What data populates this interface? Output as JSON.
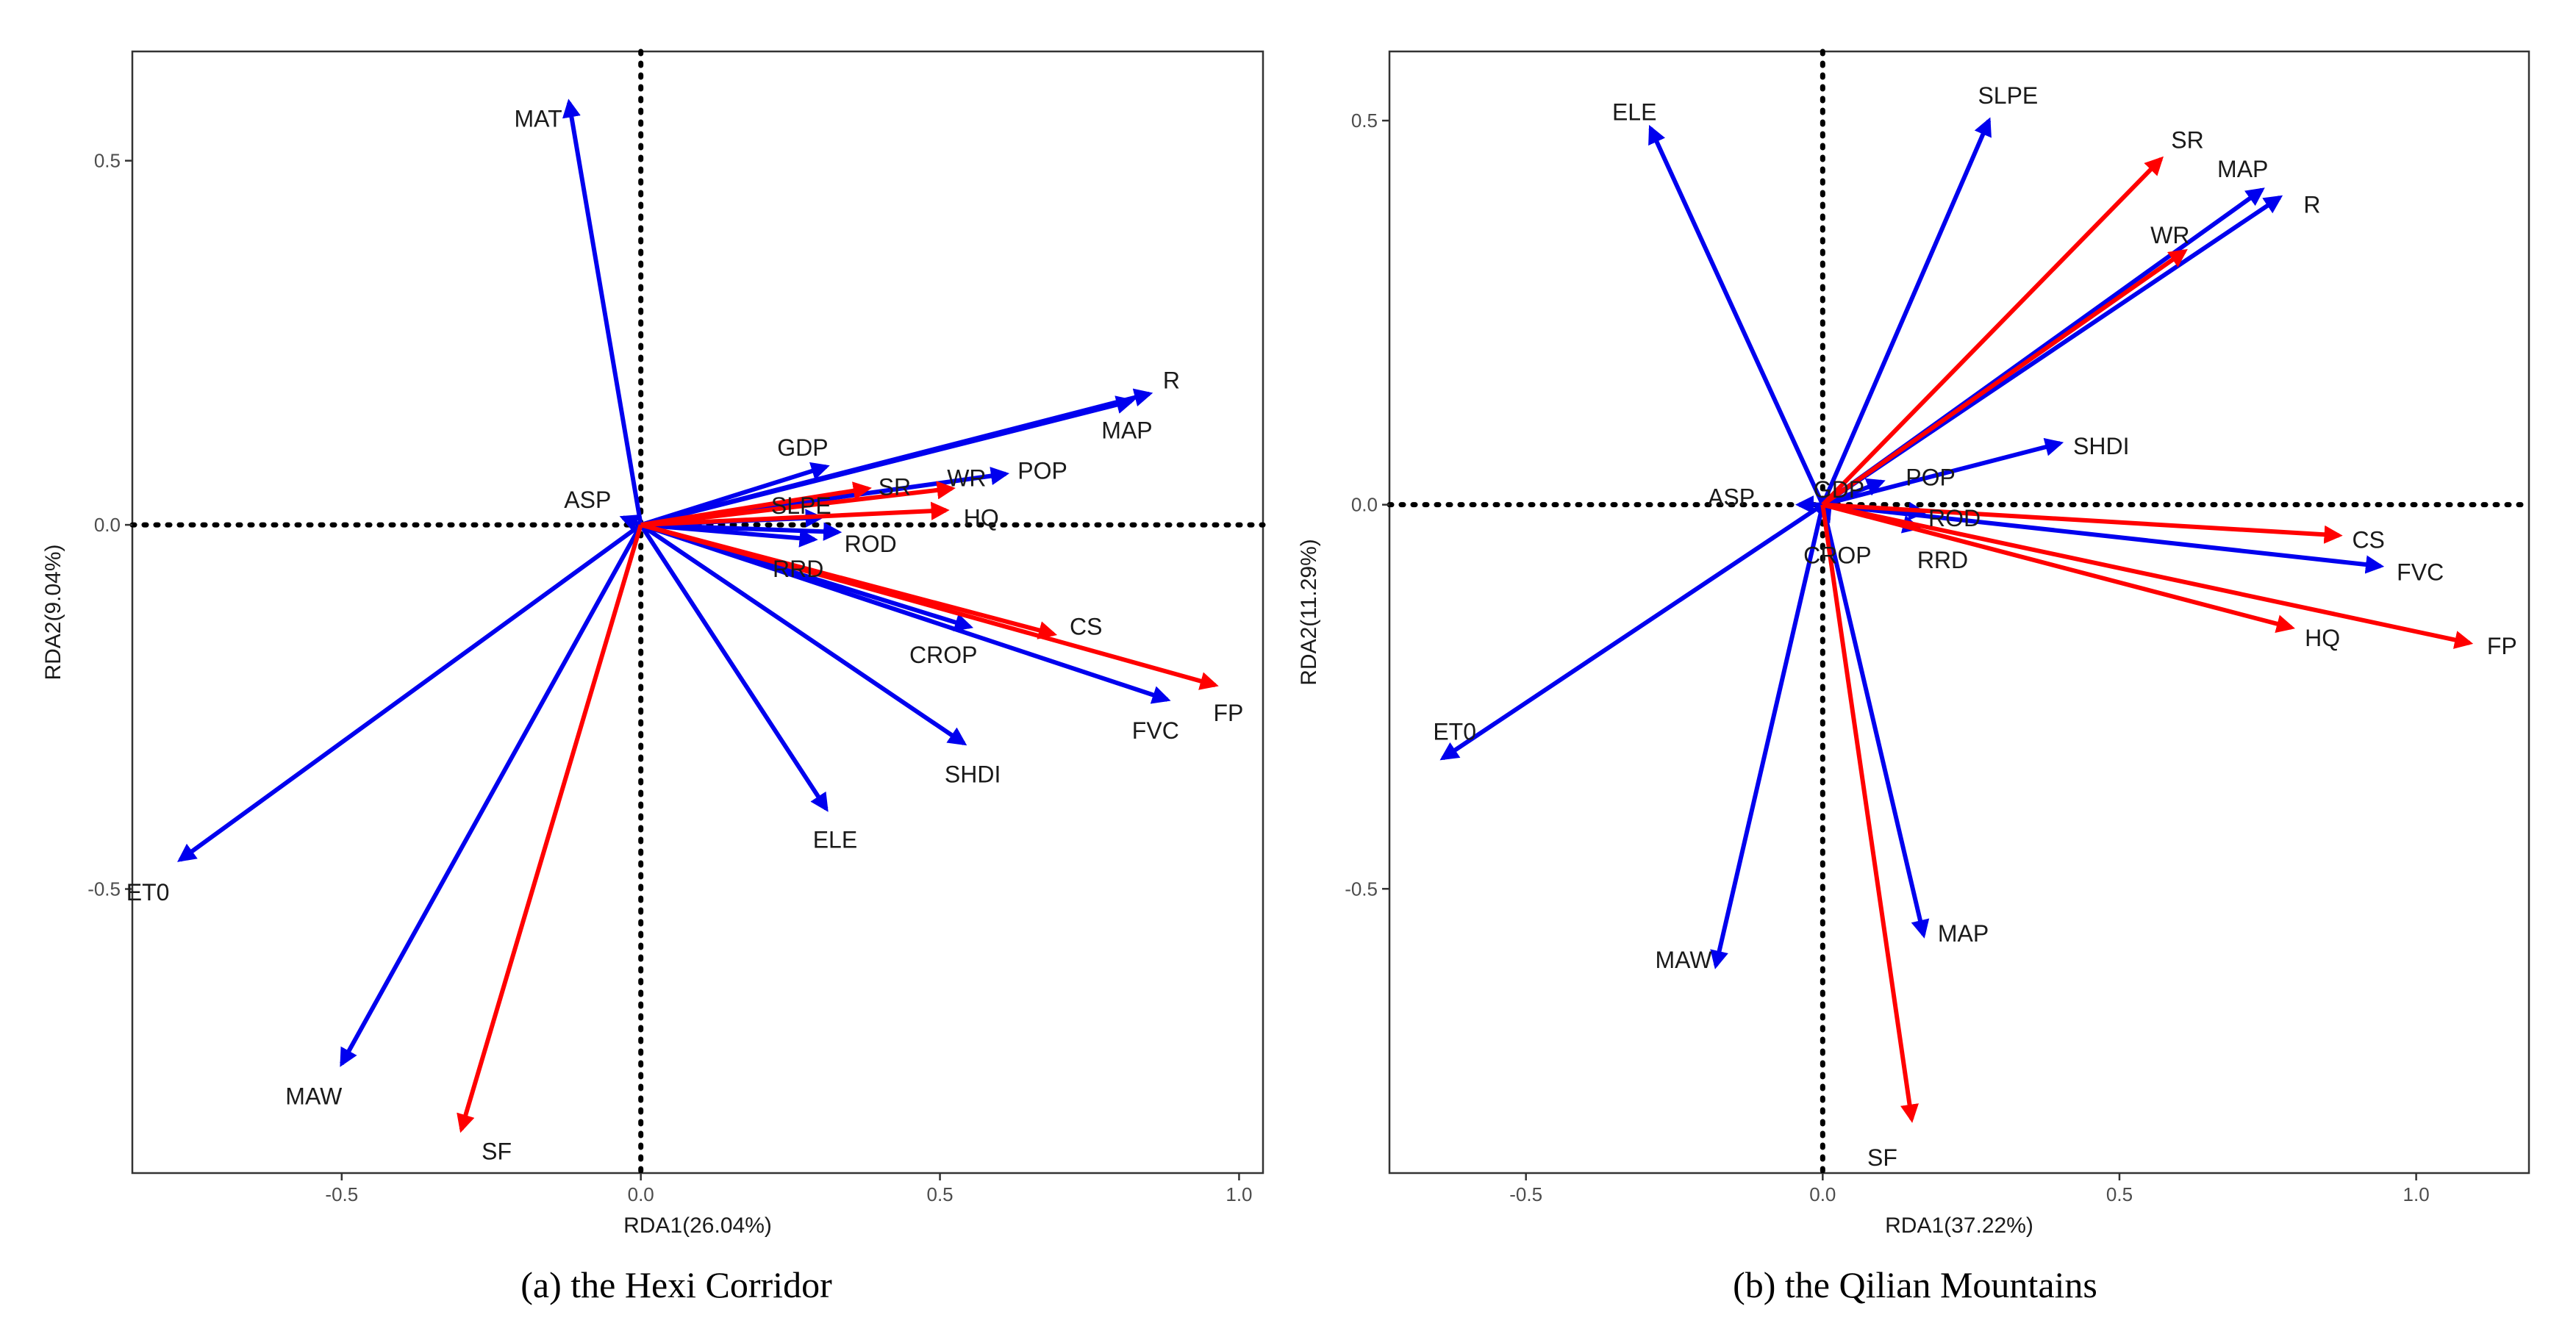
{
  "colors": {
    "response": "#ff0000",
    "explanatory": "#0000ee",
    "zero_line": "#000000",
    "frame": "#333333"
  },
  "chart_data": [
    {
      "type": "rda-biplot",
      "caption": "(a) the Hexi Corridor",
      "xlabel": "RDA1(26.04%)",
      "ylabel": "RDA2(9.04%)",
      "xlim": [
        -0.85,
        1.04
      ],
      "ylim": [
        -0.89,
        0.65
      ],
      "x_ticks": [
        -0.5,
        0.0,
        0.5,
        1.0
      ],
      "x_tick_labels": [
        "-0.5",
        "0.0",
        "0.5",
        "1.0"
      ],
      "y_ticks": [
        -0.5,
        0.0,
        0.5
      ],
      "y_tick_labels": [
        "-0.5",
        "0.0",
        "0.5"
      ],
      "response_vectors": [
        {
          "name": "SR",
          "x": 0.38,
          "y": 0.05
        },
        {
          "name": "WR",
          "x": 0.52,
          "y": 0.05
        },
        {
          "name": "HQ",
          "x": 0.51,
          "y": 0.02
        },
        {
          "name": "CS",
          "x": 0.69,
          "y": -0.15
        },
        {
          "name": "FP",
          "x": 0.96,
          "y": -0.22
        },
        {
          "name": "SF",
          "x": -0.3,
          "y": -0.83
        }
      ],
      "explanatory_vectors": [
        {
          "name": "MAT",
          "x": -0.12,
          "y": 0.58
        },
        {
          "name": "R",
          "x": 0.85,
          "y": 0.18
        },
        {
          "name": "MAP",
          "x": 0.82,
          "y": 0.17
        },
        {
          "name": "POP",
          "x": 0.61,
          "y": 0.07
        },
        {
          "name": "GDP",
          "x": 0.31,
          "y": 0.08
        },
        {
          "name": "SLPE",
          "x": 0.3,
          "y": 0.01
        },
        {
          "name": "ROD",
          "x": 0.33,
          "y": -0.01
        },
        {
          "name": "RRD",
          "x": 0.29,
          "y": -0.02
        },
        {
          "name": "CROP",
          "x": 0.55,
          "y": -0.14
        },
        {
          "name": "FVC",
          "x": 0.88,
          "y": -0.24
        },
        {
          "name": "SHDI",
          "x": 0.54,
          "y": -0.3
        },
        {
          "name": "ELE",
          "x": 0.31,
          "y": -0.39
        },
        {
          "name": "ET0",
          "x": -0.77,
          "y": -0.46
        },
        {
          "name": "MAW",
          "x": -0.5,
          "y": -0.74
        },
        {
          "name": "ASP",
          "x": -0.03,
          "y": 0.01
        }
      ]
    },
    {
      "type": "rda-biplot",
      "caption": "(b) the Qilian Mountains",
      "xlabel": "RDA1(37.22%)",
      "ylabel": "RDA2(11.29%)",
      "xlim": [
        -0.73,
        1.19
      ],
      "ylim": [
        -0.87,
        0.59
      ],
      "x_ticks": [
        -0.5,
        0.0,
        0.5,
        1.0
      ],
      "x_tick_labels": [
        "-0.5",
        "0.0",
        "0.5",
        "1.0"
      ],
      "y_ticks": [
        -0.5,
        0.0,
        0.5
      ],
      "y_tick_labels": [
        "-0.5",
        "0.0",
        "0.5"
      ],
      "response_vectors": [
        {
          "name": "SR",
          "x": 0.57,
          "y": 0.45
        },
        {
          "name": "WR",
          "x": 0.61,
          "y": 0.33
        },
        {
          "name": "CS",
          "x": 0.87,
          "y": -0.04
        },
        {
          "name": "HQ",
          "x": 0.79,
          "y": -0.16
        },
        {
          "name": "FP",
          "x": 1.09,
          "y": -0.18
        },
        {
          "name": "SF",
          "x": 0.15,
          "y": -0.8
        }
      ],
      "explanatory_vectors": [
        {
          "name": "ELE",
          "x": -0.29,
          "y": 0.49
        },
        {
          "name": "SLPE",
          "x": 0.28,
          "y": 0.5
        },
        {
          "name": "MAP",
          "x": 0.74,
          "y": 0.41
        },
        {
          "name": "R",
          "x": 0.77,
          "y": 0.4
        },
        {
          "name": "SHDI",
          "x": 0.4,
          "y": 0.08
        },
        {
          "name": "POP",
          "x": 0.1,
          "y": 0.03
        },
        {
          "name": "GDP",
          "x": 0.02,
          "y": 0.01
        },
        {
          "name": "ASP",
          "x": -0.04,
          "y": 0.0
        },
        {
          "name": "ROD",
          "x": 0.17,
          "y": -0.01
        },
        {
          "name": "RRD",
          "x": 0.16,
          "y": -0.03
        },
        {
          "name": "CROP",
          "x": 0.01,
          "y": -0.02
        },
        {
          "name": "FVC",
          "x": 0.94,
          "y": -0.08
        },
        {
          "name": "MAP",
          "x": 0.17,
          "y": -0.56
        },
        {
          "name": "MAW",
          "x": -0.18,
          "y": -0.6
        },
        {
          "name": "ET0",
          "x": -0.64,
          "y": -0.33
        }
      ]
    }
  ]
}
